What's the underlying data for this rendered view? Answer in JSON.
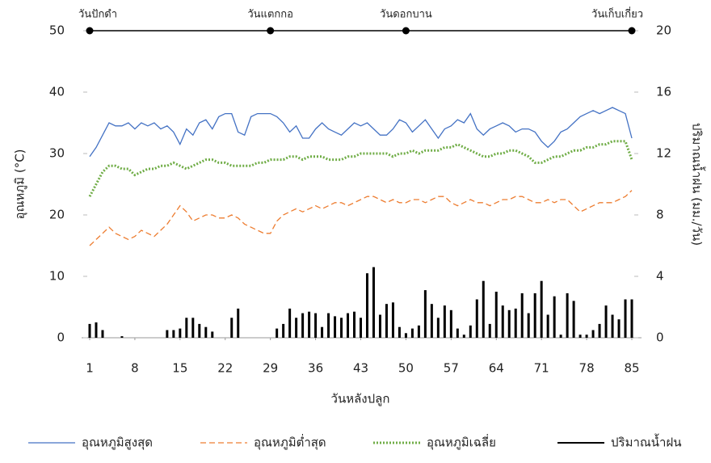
{
  "chart_data": {
    "type": "line",
    "x_label": "วันหลังปลูก",
    "y_label": "อุณหภูมิ (°C)",
    "y2_label": "ปริมาณน้ำฝน (มม./วัน)",
    "x": [
      1,
      2,
      3,
      4,
      5,
      6,
      7,
      8,
      9,
      10,
      11,
      12,
      13,
      14,
      15,
      16,
      17,
      18,
      19,
      20,
      21,
      22,
      23,
      24,
      25,
      26,
      27,
      28,
      29,
      30,
      31,
      32,
      33,
      34,
      35,
      36,
      37,
      38,
      39,
      40,
      41,
      42,
      43,
      44,
      45,
      46,
      47,
      48,
      49,
      50,
      51,
      52,
      53,
      54,
      55,
      56,
      57,
      58,
      59,
      60,
      61,
      62,
      63,
      64,
      65,
      66,
      67,
      68,
      69,
      70,
      71,
      72,
      73,
      74,
      75,
      76,
      77,
      78,
      79,
      80,
      81,
      82,
      83,
      84,
      85
    ],
    "xlim": [
      1,
      85
    ],
    "xticks": [
      1,
      8,
      15,
      22,
      29,
      36,
      43,
      50,
      57,
      64,
      71,
      78,
      85
    ],
    "ylim": [
      0,
      50
    ],
    "yticks": [
      0,
      10,
      20,
      30,
      40,
      50
    ],
    "y2lim": [
      0,
      20
    ],
    "y2ticks": [
      0,
      4,
      8,
      12,
      16,
      20
    ],
    "milestones": [
      {
        "day": 1,
        "label": "วันปักดำ"
      },
      {
        "day": 29,
        "label": "วันแตกกอ"
      },
      {
        "day": 50,
        "label": "วันดอกบาน"
      },
      {
        "day": 85,
        "label": "วันเก็บเกี่ยว"
      }
    ],
    "series": [
      {
        "name": "อุณหภูมิสูงสุด",
        "kind": "line",
        "style": "solid",
        "color": "#4472c4",
        "values": [
          29.5,
          31,
          33,
          35,
          34.5,
          34.5,
          35,
          34,
          35,
          34.5,
          35,
          34,
          34.5,
          33.5,
          31.5,
          34,
          33,
          35,
          35.5,
          34,
          36,
          36.5,
          36.5,
          33.5,
          33,
          36,
          36.5,
          36.5,
          36.5,
          36,
          35,
          33.5,
          34.5,
          32.5,
          32.5,
          34,
          35,
          34,
          33.5,
          33,
          34,
          35,
          34.5,
          35,
          34,
          33,
          33,
          34,
          35.5,
          35,
          33.5,
          34.5,
          35.5,
          34,
          32.5,
          34,
          34.5,
          35.5,
          35,
          36.5,
          34,
          33,
          34,
          34.5,
          35,
          34.5,
          33.5,
          34,
          34,
          33.5,
          32,
          31,
          32,
          33.5,
          34,
          35,
          36,
          36.5,
          37,
          36.5,
          37,
          37.5,
          37,
          36.5,
          32.5
        ]
      },
      {
        "name": "อุณหภูมิต่ำสุด",
        "kind": "line",
        "style": "dashed",
        "color": "#ed7d31",
        "values": [
          15,
          16,
          17,
          18,
          17,
          16.5,
          16,
          16.5,
          17.5,
          17,
          16.5,
          17.5,
          18.5,
          20,
          21.5,
          20.5,
          19,
          19.5,
          20,
          20,
          19.5,
          19.5,
          20,
          19.5,
          18.5,
          18,
          17.5,
          17,
          17,
          19,
          20,
          20.5,
          21,
          20.5,
          21,
          21.5,
          21,
          21.5,
          22,
          22,
          21.5,
          22,
          22.5,
          23,
          23,
          22.5,
          22,
          22.5,
          22,
          22,
          22.5,
          22.5,
          22,
          22.5,
          23,
          23,
          22,
          21.5,
          22,
          22.5,
          22,
          22,
          21.5,
          22,
          22.5,
          22.5,
          23,
          23,
          22.5,
          22,
          22,
          22.5,
          22,
          22.5,
          22.5,
          21.5,
          20.5,
          21,
          21.5,
          22,
          22,
          22,
          22.5,
          23,
          24
        ]
      },
      {
        "name": "อุณหภูมิเฉลี่ย",
        "kind": "line",
        "style": "dotted",
        "color": "#70ad47",
        "values": [
          23,
          25,
          27,
          28,
          28,
          27.5,
          27.5,
          26.5,
          27,
          27.5,
          27.5,
          28,
          28,
          28.5,
          28,
          27.5,
          28,
          28.5,
          29,
          29,
          28.5,
          28.5,
          28,
          28,
          28,
          28,
          28.5,
          28.5,
          29,
          29,
          29,
          29.5,
          29.5,
          29,
          29.5,
          29.5,
          29.5,
          29,
          29,
          29,
          29.5,
          29.5,
          30,
          30,
          30,
          30,
          30,
          29.5,
          30,
          30,
          30.5,
          30,
          30.5,
          30.5,
          30.5,
          31,
          31,
          31.5,
          31,
          30.5,
          30,
          29.5,
          29.5,
          30,
          30,
          30.5,
          30.5,
          30,
          29.5,
          28.5,
          28.5,
          29,
          29.5,
          29.5,
          30,
          30.5,
          30.5,
          31,
          31,
          31.5,
          31.5,
          32,
          32,
          32,
          29
        ]
      },
      {
        "name": "ปริมาณน้ำฝน",
        "kind": "bar",
        "style": "solid",
        "color": "#000000",
        "axis": "y2",
        "values": [
          0.9,
          1.0,
          0.5,
          0,
          0,
          0.1,
          0,
          0,
          0,
          0,
          0,
          0,
          0.5,
          0.5,
          0.6,
          1.3,
          1.3,
          0.9,
          0.7,
          0.4,
          0,
          0,
          1.3,
          1.9,
          0,
          0,
          0,
          0,
          0,
          0.6,
          0.9,
          1.9,
          1.3,
          1.6,
          1.7,
          1.6,
          0.7,
          1.6,
          1.4,
          1.3,
          1.6,
          1.7,
          1.3,
          4.2,
          4.6,
          1.5,
          2.2,
          2.3,
          0.7,
          0.3,
          0.6,
          0.8,
          3.1,
          2.2,
          1.3,
          2.1,
          1.8,
          0.6,
          0.2,
          0.8,
          2.5,
          3.7,
          0.9,
          3.0,
          2.1,
          1.8,
          1.9,
          2.9,
          1.6,
          2.9,
          3.7,
          1.5,
          2.7,
          0.2,
          2.9,
          2.4,
          0.2,
          0.2,
          0.5,
          0.9,
          2.1,
          1.5,
          1.2,
          2.5,
          2.5
        ]
      }
    ]
  }
}
